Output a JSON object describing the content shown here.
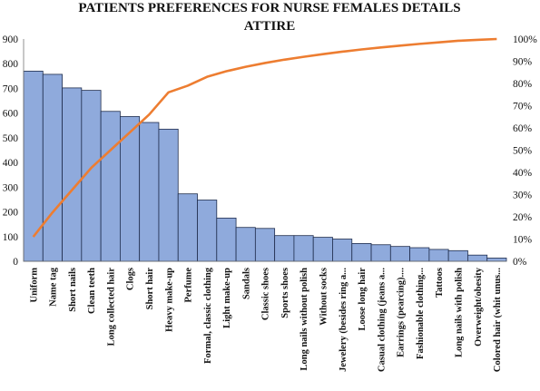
{
  "chart_data": {
    "type": "bar",
    "title_lines": [
      "PATIENTS PREFERENCES FOR NURSE FEMALES DETAILS",
      "ATTIRE"
    ],
    "categories": [
      "Uniform",
      "Name tag",
      "Short nails",
      "Clean teeth",
      "Long collected hair",
      "Clogs",
      "Short hair",
      "Heavy make-up",
      "Perfume",
      "Formal, classic clothing",
      "Light make-up",
      "Sandals",
      "Classic shoes",
      "Sports shoes",
      "Long nails without polish",
      "Without socks",
      "Jewelery (besides ring a...",
      "Loose long hair",
      "Casual clothing (jeans a...",
      "Earrings (pearcing)....",
      "Fashionable clothing...",
      "Tattoos",
      "Long nails with polish",
      "Overweight/obesity",
      "Colored hair (whit unus..."
    ],
    "series": [
      {
        "type": "bar",
        "axis": "left",
        "values": [
          770,
          757,
          702,
          692,
          607,
          586,
          562,
          535,
          273,
          248,
          175,
          137,
          133,
          104,
          104,
          97,
          90,
          72,
          67,
          60,
          55,
          48,
          43,
          25,
          13
        ]
      },
      {
        "type": "line",
        "axis": "right",
        "values": [
          0.11,
          0.22,
          0.32,
          0.42,
          0.5,
          0.58,
          0.66,
          0.76,
          0.79,
          0.83,
          0.855,
          0.875,
          0.892,
          0.907,
          0.92,
          0.932,
          0.943,
          0.953,
          0.962,
          0.97,
          0.978,
          0.985,
          0.992,
          0.996,
          1.0
        ]
      }
    ],
    "y_left": {
      "lim": [
        0,
        900
      ],
      "ticks": [
        0,
        100,
        200,
        300,
        400,
        500,
        600,
        700,
        800,
        900
      ]
    },
    "y_right": {
      "lim": [
        0,
        1
      ],
      "ticks": [
        "0%",
        "10%",
        "20%",
        "30%",
        "40%",
        "50%",
        "60%",
        "70%",
        "80%",
        "90%",
        "100%"
      ]
    },
    "grid": false,
    "legend": "none",
    "colors": {
      "bar_fill": "#8faadc",
      "bar_edge": "#1f2d4d",
      "cumulative_line": "#ed7d31"
    }
  }
}
